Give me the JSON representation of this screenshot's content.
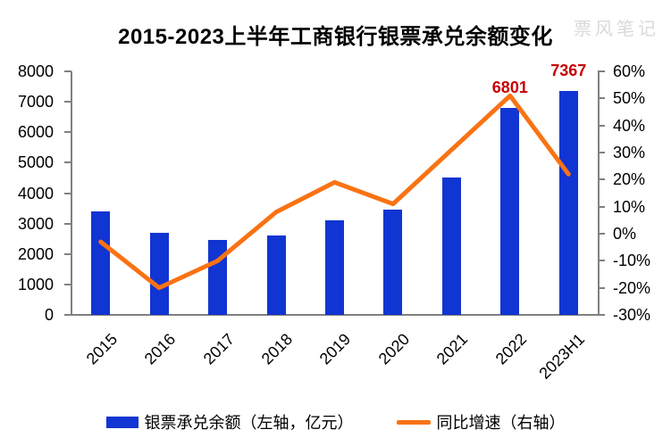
{
  "title": "2015-2023上半年工商银行银票承兑余额变化",
  "watermark": "票风笔记",
  "colors": {
    "bar_blue": "#1135d2",
    "line_orange": "#f97314",
    "data_label_red": "#c80000",
    "axis_gray": "#808080",
    "watermark_gray": "#d9d9d9"
  },
  "chart_data": {
    "type": "combo-bar-line",
    "title": "2015-2023上半年工商银行银票承兑余额变化",
    "categories": [
      "2015",
      "2016",
      "2017",
      "2018",
      "2019",
      "2020",
      "2021",
      "2022",
      "2023H1"
    ],
    "series": [
      {
        "name": "银票承兑余额（左轴，亿元）",
        "type": "bar",
        "axis": "left",
        "values": [
          3400,
          2710,
          2450,
          2600,
          3100,
          3450,
          4500,
          6801,
          7367
        ]
      },
      {
        "name": "同比增速（右轴）",
        "type": "line",
        "axis": "right",
        "unit": "%",
        "values": [
          -3,
          -20,
          -10,
          8,
          19,
          11,
          31,
          51,
          22
        ]
      }
    ],
    "left_axis": {
      "min": 0,
      "max": 8000,
      "step": 1000,
      "tick_labels": [
        "8000",
        "7000",
        "6000",
        "5000",
        "4000",
        "3000",
        "2000",
        "1000",
        "0"
      ]
    },
    "right_axis": {
      "min": -30,
      "max": 60,
      "step": 10,
      "tick_labels": [
        "60%",
        "50%",
        "40%",
        "30%",
        "20%",
        "10%",
        "0%",
        "-10%",
        "-20%",
        "-30%"
      ]
    },
    "data_labels": [
      {
        "category": "2022",
        "index": 7,
        "text": "6801"
      },
      {
        "category": "2023H1",
        "index": 8,
        "text": "7367"
      }
    ],
    "legend": [
      "银票承兑余额（左轴，亿元）",
      "同比增速（右轴）"
    ],
    "legend_position": "bottom",
    "grid": false
  }
}
